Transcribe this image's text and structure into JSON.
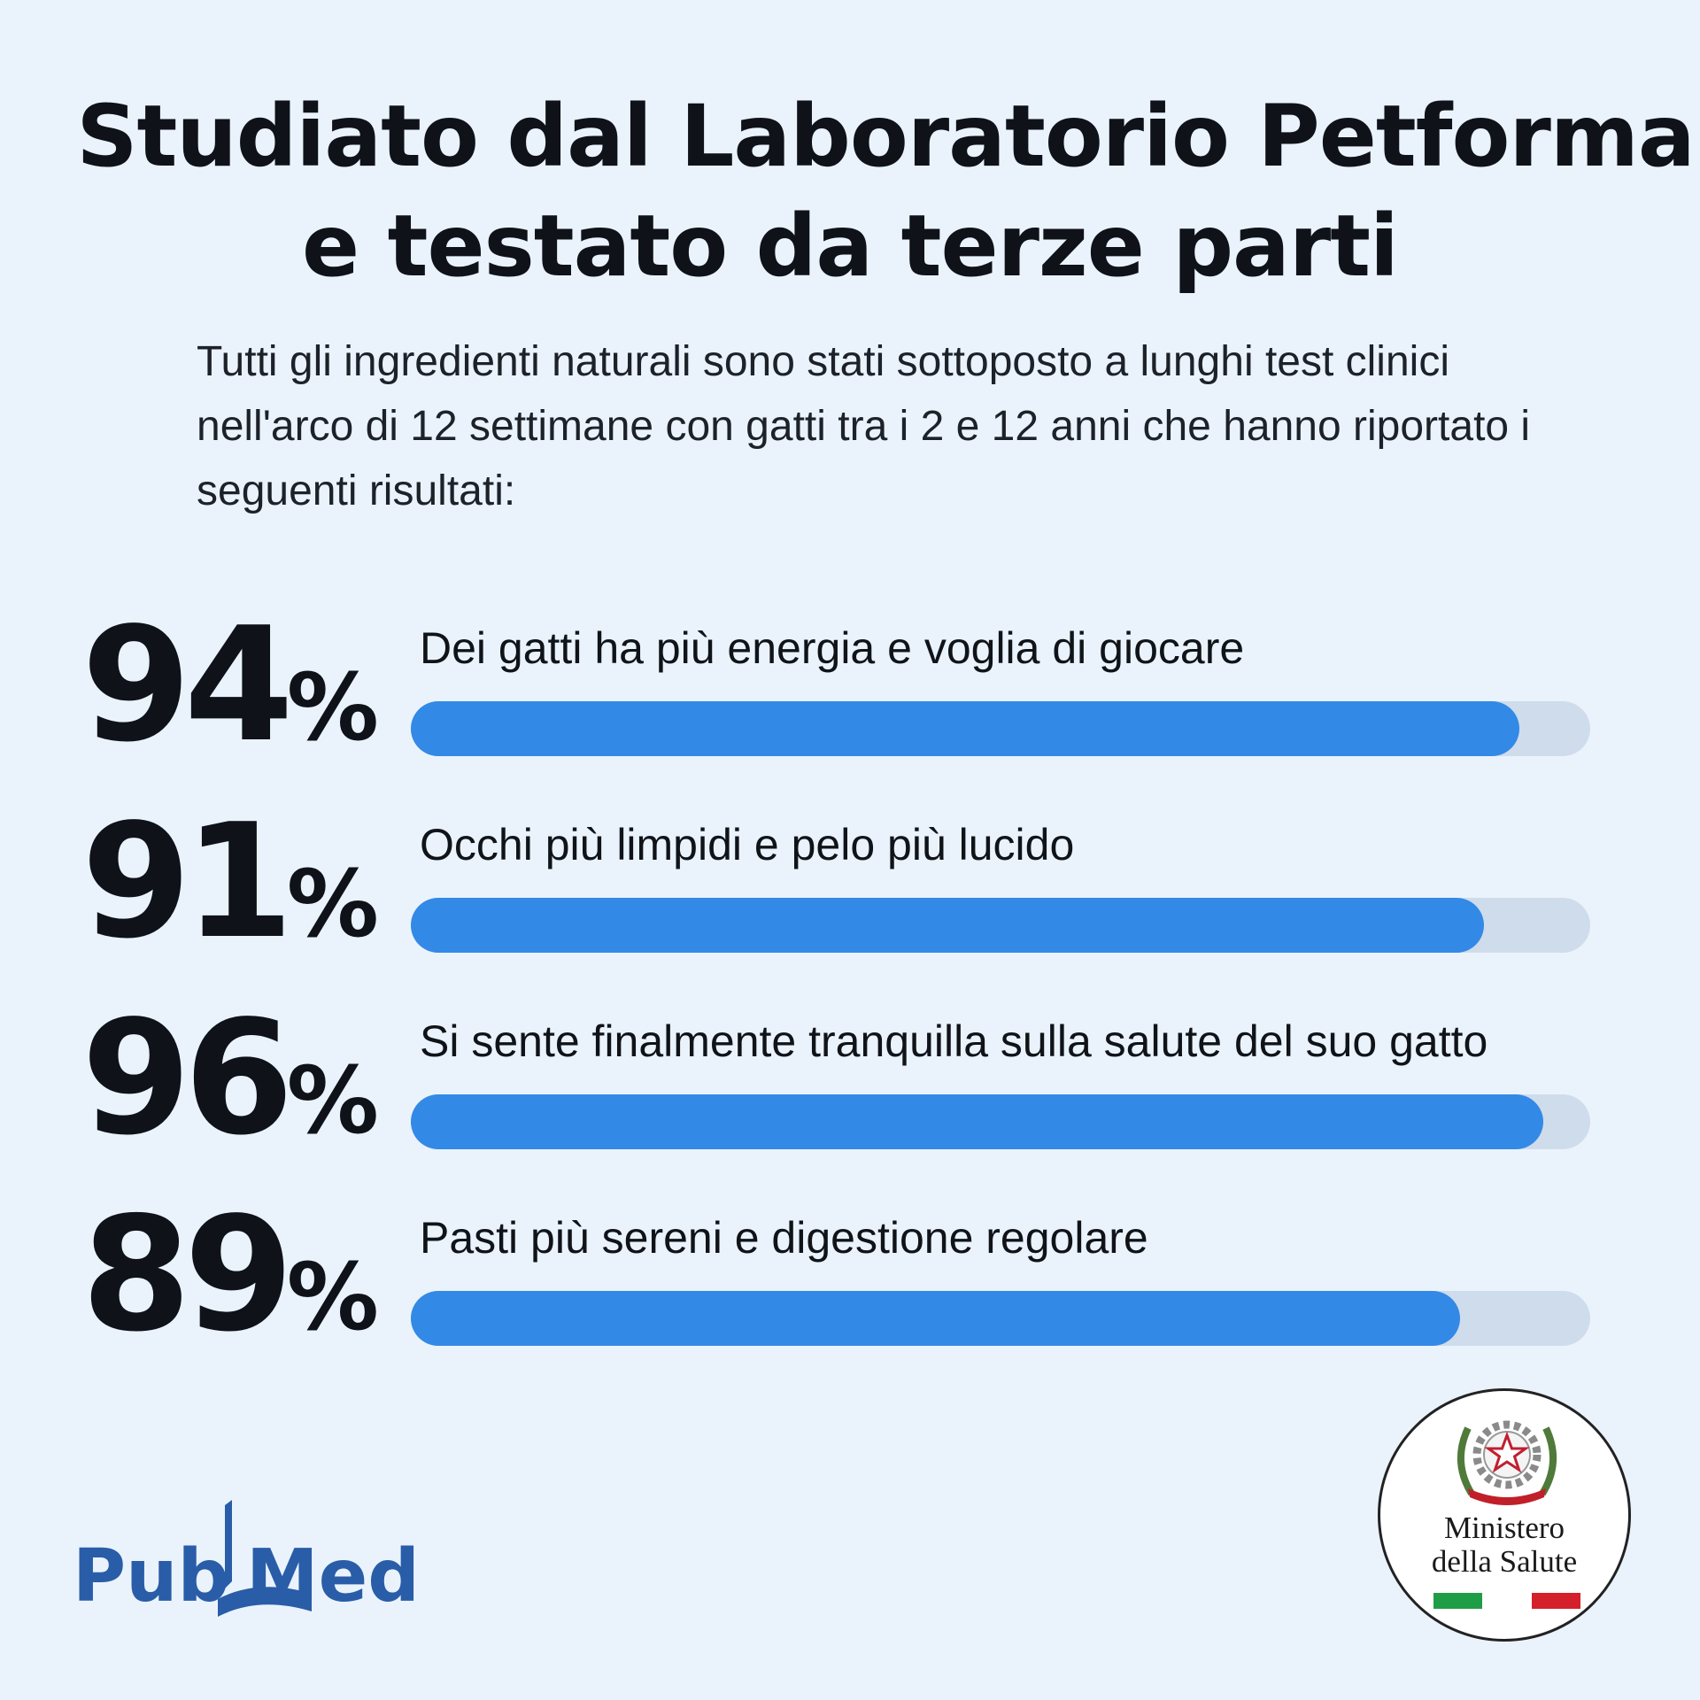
{
  "title": {
    "line1": "Studiato dal Laboratorio Petforma",
    "line2": "e testato da terze parti"
  },
  "subtitle": "Tutti gli ingredienti naturali sono stati sottoposto a lunghi test clinici nell'arco di 12 settimane con gatti tra i 2 e 12 anni che hanno riportato i seguenti risultati:",
  "chart_data": {
    "type": "bar",
    "orientation": "horizontal",
    "categories": [
      "Dei gatti ha più energia e voglia di giocare",
      "Occhi più limpidi e pelo più lucido",
      "Si sente finalmente tranquilla sulla salute del suo gatto",
      "Pasti più sereni e digestione regolare"
    ],
    "values": [
      94,
      91,
      96,
      89
    ],
    "value_suffix": "%",
    "xlim": [
      0,
      100
    ],
    "grid": false,
    "colors": {
      "fill": "#3389e6",
      "track": "#cfdceb"
    }
  },
  "logos": {
    "pubmed": {
      "part1": "Pub",
      "part2": "Med",
      "color": "#2a5da8"
    },
    "seal": {
      "line1": "Ministero",
      "line2": "della Salute",
      "flag_colors": [
        "#1f9d46",
        "#ffffff",
        "#d4202a"
      ]
    }
  },
  "colors": {
    "background": "#eaf3fc",
    "text": "#0f1218"
  }
}
